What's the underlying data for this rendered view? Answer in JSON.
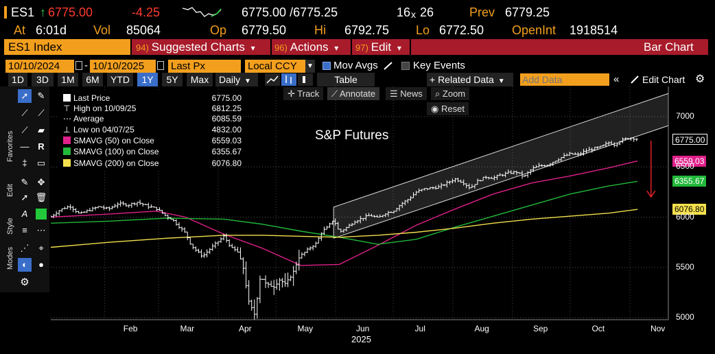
{
  "quote": {
    "ticker": "ES1",
    "arrow": "↑",
    "last": "6775.00",
    "change": "-4.25",
    "bid_ask": "6775.00 /6775.25",
    "size_left": "16",
    "size_x": "x",
    "size_right": "26",
    "prev_label": "Prev",
    "prev": "6779.25",
    "at_label": "At",
    "at_time": "6:01d",
    "vol_label": "Vol",
    "vol": "85064",
    "op_label": "Op",
    "open": "6779.50",
    "hi_label": "Hi",
    "high": "6792.75",
    "lo_label": "Lo",
    "low": "6772.50",
    "oi_label": "OpenInt",
    "open_int": "1918514"
  },
  "command_bar": {
    "ticker_label": "ES1 Index",
    "items": [
      {
        "num": "94)",
        "label": "Suggested Charts",
        "caret": "▾"
      },
      {
        "num": "96)",
        "label": "Actions",
        "caret": "▾"
      },
      {
        "num": "97)",
        "label": "Edit",
        "caret": "▾"
      }
    ],
    "chart_type": "Bar Chart"
  },
  "date_row": {
    "start": "10/10/2024",
    "dash": "-",
    "end": "10/10/2025",
    "price_field": "Last Px",
    "currency": "Local CCY",
    "mov_avgs": "Mov Avgs",
    "key_events": "Key Events"
  },
  "toolbar": {
    "periods": [
      "1D",
      "3D",
      "1M",
      "6M",
      "YTD",
      "1Y",
      "5Y",
      "Max"
    ],
    "active_period": "1Y",
    "frequency": "Daily",
    "table": "Table",
    "related": "+ Related Data",
    "add_data_placeholder": "Add Data",
    "edit_chart": "Edit Chart"
  },
  "side_labels": {
    "favorites": "Favorites",
    "edit": "Edit",
    "style": "Style",
    "modes": "Modes"
  },
  "chart_buttons": {
    "track": "Track",
    "annotate": "Annotate",
    "news": "News",
    "zoom": "Zoom",
    "reset": "Reset"
  },
  "colors": {
    "orange": "#f39f1e",
    "red_bar": "#a81b2a",
    "sma50": "#e0208a",
    "sma100": "#22b83a",
    "sma200": "#f4e04d",
    "price": "#ffffff"
  },
  "chart_data": {
    "type": "bar",
    "title": "S&P Futures",
    "xlabel": "2025",
    "ylabel": "",
    "ylim": [
      4980,
      7300
    ],
    "y_ticks": [
      5000,
      5500,
      6000,
      6500,
      7000
    ],
    "y_tick_labels": [
      "5000",
      "5500",
      "6000",
      "6500",
      "7000"
    ],
    "x_tick_labels": [
      "Feb",
      "Mar",
      "Apr",
      "May",
      "Jun",
      "Jul",
      "Aug",
      "Sep",
      "Oct",
      "Nov"
    ],
    "x_ticks_day": [
      28,
      56,
      87,
      117,
      148,
      178,
      209,
      240,
      270,
      301
    ],
    "year_label": "2025",
    "x_domain_days": [
      0,
      321
    ],
    "legend": [
      {
        "label": "Last Price",
        "value": "6775.00",
        "kind": "box",
        "color": "#ffffff"
      },
      {
        "label": "High on 10/09/25",
        "value": "6812.25",
        "kind": "high",
        "color": "#ffffff"
      },
      {
        "label": "Average",
        "value": "6085.59",
        "kind": "avg",
        "color": "#ffffff"
      },
      {
        "label": "Low on 04/07/25",
        "value": "4832.00",
        "kind": "low",
        "color": "#ffffff"
      },
      {
        "label": "SMAVG (50)  on Close",
        "value": "6559.03",
        "kind": "box",
        "color": "#e0208a"
      },
      {
        "label": "SMAVG (100)  on Close",
        "value": "6355.67",
        "kind": "box",
        "color": "#22b83a"
      },
      {
        "label": "SMAVG (200)  on Close",
        "value": "6076.80",
        "kind": "box",
        "color": "#f4e04d"
      }
    ],
    "last_price_tags": [
      {
        "label": "6775.00",
        "value": 6775,
        "bg": "#000000",
        "fg": "#ffffff"
      },
      {
        "label": "6559.03",
        "value": 6559,
        "bg": "#e0208a",
        "fg": "#ffffff"
      },
      {
        "label": "6355.67",
        "value": 6356,
        "bg": "#22b83a",
        "fg": "#ffffff"
      },
      {
        "label": "6076.80",
        "value": 6077,
        "bg": "#f4e04d",
        "fg": "#000000"
      }
    ],
    "price_points": [
      {
        "d": 0,
        "v": 6005
      },
      {
        "d": 5,
        "v": 6075
      },
      {
        "d": 10,
        "v": 6110
      },
      {
        "d": 15,
        "v": 6030
      },
      {
        "d": 20,
        "v": 6070
      },
      {
        "d": 25,
        "v": 6105
      },
      {
        "d": 30,
        "v": 6080
      },
      {
        "d": 35,
        "v": 6135
      },
      {
        "d": 40,
        "v": 6120
      },
      {
        "d": 45,
        "v": 6150
      },
      {
        "d": 50,
        "v": 6110
      },
      {
        "d": 55,
        "v": 6085
      },
      {
        "d": 60,
        "v": 6010
      },
      {
        "d": 63,
        "v": 5980
      },
      {
        "d": 67,
        "v": 5900
      },
      {
        "d": 70,
        "v": 5840
      },
      {
        "d": 73,
        "v": 5720
      },
      {
        "d": 76,
        "v": 5660
      },
      {
        "d": 79,
        "v": 5610
      },
      {
        "d": 82,
        "v": 5670
      },
      {
        "d": 86,
        "v": 5740
      },
      {
        "d": 90,
        "v": 5810
      },
      {
        "d": 94,
        "v": 5690
      },
      {
        "d": 97,
        "v": 5660
      },
      {
        "d": 100,
        "v": 5500
      },
      {
        "d": 103,
        "v": 5150
      },
      {
        "d": 106,
        "v": 5030
      },
      {
        "d": 109,
        "v": 5420
      },
      {
        "d": 112,
        "v": 5330
      },
      {
        "d": 116,
        "v": 5310
      },
      {
        "d": 119,
        "v": 5380
      },
      {
        "d": 122,
        "v": 5330
      },
      {
        "d": 126,
        "v": 5450
      },
      {
        "d": 129,
        "v": 5600
      },
      {
        "d": 132,
        "v": 5650
      },
      {
        "d": 135,
        "v": 5700
      },
      {
        "d": 138,
        "v": 5740
      },
      {
        "d": 141,
        "v": 5860
      },
      {
        "d": 144,
        "v": 5900
      },
      {
        "d": 147,
        "v": 5980
      },
      {
        "d": 150,
        "v": 5850
      },
      {
        "d": 154,
        "v": 5900
      },
      {
        "d": 158,
        "v": 5960
      },
      {
        "d": 162,
        "v": 5990
      },
      {
        "d": 166,
        "v": 6020
      },
      {
        "d": 170,
        "v": 5990
      },
      {
        "d": 174,
        "v": 6040
      },
      {
        "d": 178,
        "v": 6060
      },
      {
        "d": 182,
        "v": 6130
      },
      {
        "d": 186,
        "v": 6180
      },
      {
        "d": 190,
        "v": 6250
      },
      {
        "d": 194,
        "v": 6280
      },
      {
        "d": 198,
        "v": 6290
      },
      {
        "d": 202,
        "v": 6300
      },
      {
        "d": 206,
        "v": 6340
      },
      {
        "d": 210,
        "v": 6380
      },
      {
        "d": 214,
        "v": 6350
      },
      {
        "d": 218,
        "v": 6290
      },
      {
        "d": 222,
        "v": 6360
      },
      {
        "d": 226,
        "v": 6400
      },
      {
        "d": 230,
        "v": 6390
      },
      {
        "d": 234,
        "v": 6420
      },
      {
        "d": 238,
        "v": 6440
      },
      {
        "d": 242,
        "v": 6450
      },
      {
        "d": 246,
        "v": 6400
      },
      {
        "d": 250,
        "v": 6480
      },
      {
        "d": 254,
        "v": 6510
      },
      {
        "d": 258,
        "v": 6520
      },
      {
        "d": 262,
        "v": 6560
      },
      {
        "d": 266,
        "v": 6600
      },
      {
        "d": 270,
        "v": 6630
      },
      {
        "d": 274,
        "v": 6620
      },
      {
        "d": 278,
        "v": 6660
      },
      {
        "d": 282,
        "v": 6680
      },
      {
        "d": 286,
        "v": 6700
      },
      {
        "d": 290,
        "v": 6740
      },
      {
        "d": 293,
        "v": 6720
      },
      {
        "d": 296,
        "v": 6760
      },
      {
        "d": 299,
        "v": 6780
      },
      {
        "d": 302,
        "v": 6790
      },
      {
        "d": 305,
        "v": 6775
      }
    ],
    "series": [
      {
        "name": "SMAVG (50)",
        "color": "#e0208a",
        "points": [
          {
            "d": 0,
            "v": 6000
          },
          {
            "d": 30,
            "v": 6030
          },
          {
            "d": 55,
            "v": 6060
          },
          {
            "d": 70,
            "v": 6000
          },
          {
            "d": 90,
            "v": 5830
          },
          {
            "d": 110,
            "v": 5690
          },
          {
            "d": 130,
            "v": 5520
          },
          {
            "d": 150,
            "v": 5530
          },
          {
            "d": 170,
            "v": 5720
          },
          {
            "d": 190,
            "v": 5920
          },
          {
            "d": 210,
            "v": 6080
          },
          {
            "d": 230,
            "v": 6230
          },
          {
            "d": 250,
            "v": 6340
          },
          {
            "d": 270,
            "v": 6410
          },
          {
            "d": 290,
            "v": 6490
          },
          {
            "d": 305,
            "v": 6559
          }
        ]
      },
      {
        "name": "SMAVG (100)",
        "color": "#22b83a",
        "points": [
          {
            "d": 0,
            "v": 5940
          },
          {
            "d": 30,
            "v": 5960
          },
          {
            "d": 60,
            "v": 5990
          },
          {
            "d": 90,
            "v": 5980
          },
          {
            "d": 110,
            "v": 5930
          },
          {
            "d": 130,
            "v": 5860
          },
          {
            "d": 150,
            "v": 5800
          },
          {
            "d": 170,
            "v": 5730
          },
          {
            "d": 190,
            "v": 5780
          },
          {
            "d": 210,
            "v": 5900
          },
          {
            "d": 230,
            "v": 6010
          },
          {
            "d": 250,
            "v": 6120
          },
          {
            "d": 270,
            "v": 6230
          },
          {
            "d": 290,
            "v": 6310
          },
          {
            "d": 305,
            "v": 6356
          }
        ]
      },
      {
        "name": "SMAVG (200)",
        "color": "#f4e04d",
        "points": [
          {
            "d": 0,
            "v": 5700
          },
          {
            "d": 30,
            "v": 5750
          },
          {
            "d": 60,
            "v": 5790
          },
          {
            "d": 90,
            "v": 5820
          },
          {
            "d": 110,
            "v": 5820
          },
          {
            "d": 130,
            "v": 5810
          },
          {
            "d": 150,
            "v": 5800
          },
          {
            "d": 170,
            "v": 5820
          },
          {
            "d": 190,
            "v": 5850
          },
          {
            "d": 210,
            "v": 5890
          },
          {
            "d": 230,
            "v": 5940
          },
          {
            "d": 250,
            "v": 5980
          },
          {
            "d": 270,
            "v": 6010
          },
          {
            "d": 290,
            "v": 6040
          },
          {
            "d": 305,
            "v": 6077
          }
        ]
      }
    ],
    "channel": {
      "upper": [
        {
          "d": 147,
          "v": 6100
        },
        {
          "d": 321,
          "v": 7230
        }
      ],
      "lower": [
        {
          "d": 147,
          "v": 5790
        },
        {
          "d": 321,
          "v": 6910
        }
      ]
    },
    "annotation_arrow": {
      "d": 312,
      "from": 6760,
      "to": 6200,
      "color": "#e0202a"
    }
  }
}
